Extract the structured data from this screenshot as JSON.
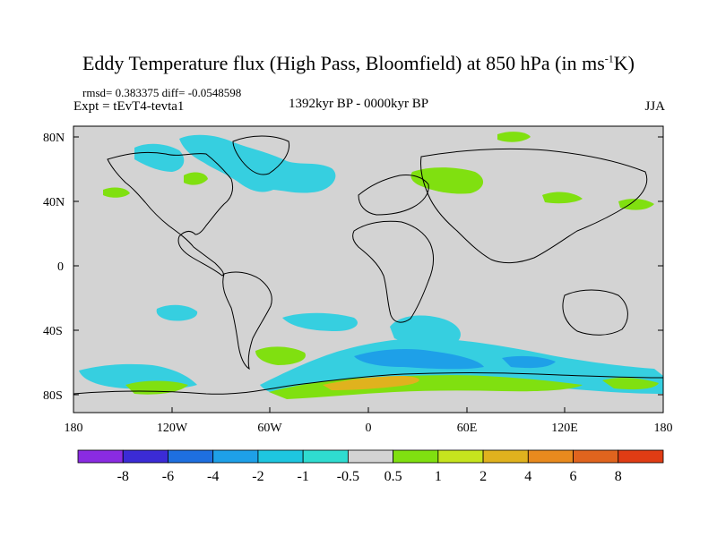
{
  "title": {
    "main": "Eddy Temperature flux (High Pass, Bloomfield) at 850 hPa (in ms",
    "sup": "-1",
    "end": "K)"
  },
  "stats": "rmsd= 0.383375 diff= -0.0548598",
  "experiment": "Expt = tEvT4-tevta1",
  "period": "1392kyr BP - 0000kyr BP",
  "season": "JJA",
  "axes": {
    "lat_ticks": [
      "80N",
      "40N",
      "0",
      "40S",
      "80S"
    ],
    "lon_ticks": [
      "180",
      "120W",
      "60W",
      "0",
      "60E",
      "120E",
      "180"
    ]
  },
  "colorbar": {
    "labels": [
      "-8",
      "-6",
      "-4",
      "-2",
      "-1",
      "-0.5",
      "0.5",
      "1",
      "2",
      "4",
      "6",
      "8"
    ],
    "colors": [
      "#8a2be2",
      "#3b2bd6",
      "#1e6fe0",
      "#1ea0e8",
      "#1ec6e0",
      "#2fdcd0",
      "#d3d3d3",
      "#80e010",
      "#c6e41e",
      "#e0b21e",
      "#e88a1e",
      "#e0641e",
      "#e03c14"
    ]
  },
  "map": {
    "background": "#d3d3d3",
    "negative_color": "#36cfe0",
    "strong_negative_color": "#1ea0e8",
    "positive_color": "#80e010",
    "strong_positive_color": "#e0b21e"
  }
}
